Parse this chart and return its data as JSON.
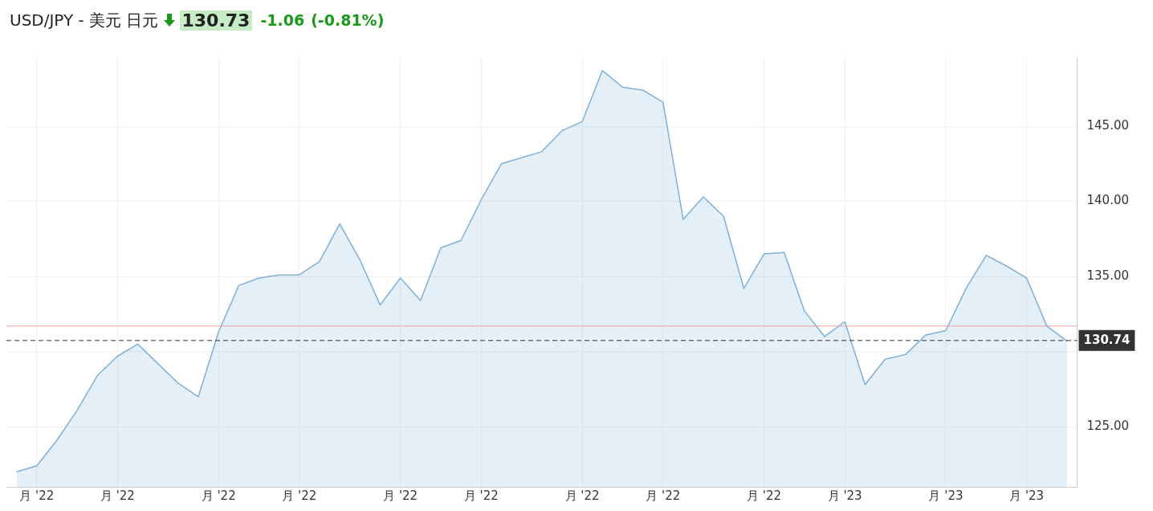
{
  "chart_data": {
    "type": "area",
    "title": "USD/JPY - 美元 日元",
    "annotations": [
      "130.73",
      "-1.06",
      "(-0.81%)"
    ],
    "categories": [
      null,
      "月 '22",
      null,
      null,
      null,
      "月 '22",
      null,
      null,
      null,
      null,
      "月 '22",
      null,
      null,
      null,
      "月 '22",
      null,
      null,
      null,
      null,
      "月 '22",
      null,
      null,
      null,
      "月 '22",
      null,
      null,
      null,
      null,
      "月 '22",
      null,
      null,
      null,
      "月 '22",
      null,
      null,
      null,
      null,
      "月 '22",
      null,
      null,
      null,
      "月 '23",
      null,
      null,
      null,
      null,
      "月 '23",
      null,
      null,
      null,
      "月 '23",
      null,
      null
    ],
    "series": [
      {
        "color": "#7fb0d8",
        "values": [
          122.0,
          122.4,
          124.1,
          126.1,
          128.4,
          129.7,
          130.5,
          129.2,
          127.9,
          127.0,
          131.3,
          134.4,
          134.9,
          135.1,
          135.1,
          136.0,
          138.5,
          136.1,
          133.1,
          134.9,
          133.4,
          136.9,
          137.4,
          140.1,
          142.5,
          142.9,
          143.3,
          144.7,
          145.3,
          148.7,
          147.6,
          147.4,
          146.6,
          138.8,
          140.3,
          139.0,
          134.2,
          136.5,
          136.6,
          132.7,
          131.0,
          132.0,
          127.8,
          129.5,
          129.8,
          131.1,
          131.4,
          134.2,
          136.4,
          135.7,
          134.9,
          131.7,
          130.7
        ]
      }
    ],
    "ylim": [
      121,
      149.6
    ],
    "yticks": [
      {
        "value": 125,
        "label": "125.00"
      },
      {
        "value": 130,
        "label": null
      },
      {
        "value": 135,
        "label": "135.00"
      },
      {
        "value": 140,
        "label": "140.00"
      },
      {
        "value": 145,
        "label": "145.00"
      }
    ],
    "ref_lines": [
      {
        "axis": "y",
        "value": 131.7,
        "color": "#e8a0a0",
        "line_style": "solid"
      },
      {
        "axis": "y",
        "value": 130.74,
        "label": "130.74",
        "color": "#333333",
        "line_style": "dashed"
      }
    ],
    "grid": true,
    "legend": false,
    "marker": "none",
    "line_style": "solid"
  }
}
